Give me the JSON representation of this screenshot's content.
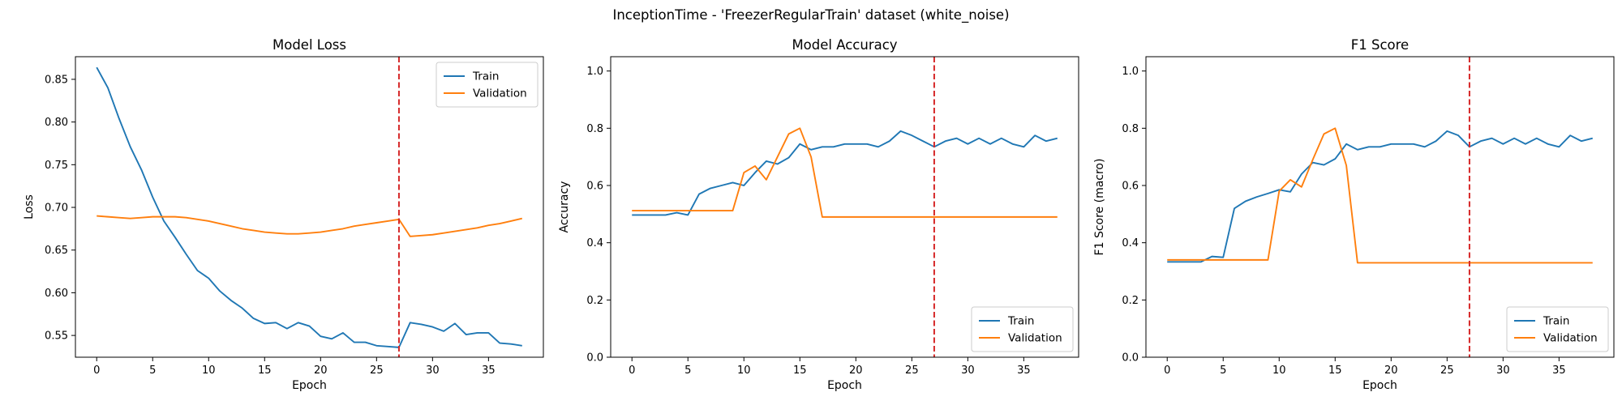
{
  "suptitle": "InceptionTime - 'FreezerRegularTrain' dataset (white_noise)",
  "colors": {
    "train": "#1f77b4",
    "validation": "#ff7f0e",
    "marker": "#d62728"
  },
  "chart_data": [
    {
      "type": "line",
      "title": "Model Loss",
      "xlabel": "Epoch",
      "ylabel": "Loss",
      "xlim": [
        -1.9,
        39.9
      ],
      "ylim": [
        0.5245,
        0.8765
      ],
      "xticks": [
        0,
        5,
        10,
        15,
        20,
        25,
        30,
        35
      ],
      "yticks": [
        0.55,
        0.6,
        0.65,
        0.7,
        0.75,
        0.8,
        0.85
      ],
      "ytick_labels": [
        "0.55",
        "0.60",
        "0.65",
        "0.70",
        "0.75",
        "0.80",
        "0.85"
      ],
      "vline": 27,
      "legend_loc": "upper right",
      "series": [
        {
          "name": "Train",
          "values": [
            0.864,
            0.84,
            0.804,
            0.771,
            0.744,
            0.712,
            0.684,
            0.665,
            0.645,
            0.626,
            0.617,
            0.602,
            0.591,
            0.582,
            0.57,
            0.564,
            0.565,
            0.558,
            0.565,
            0.561,
            0.549,
            0.546,
            0.553,
            0.542,
            0.542,
            0.538,
            0.537,
            0.536,
            0.565,
            0.563,
            0.56,
            0.555,
            0.564,
            0.551,
            0.553,
            0.553,
            0.541,
            0.54,
            0.538
          ]
        },
        {
          "name": "Validation",
          "values": [
            0.69,
            0.689,
            0.688,
            0.687,
            0.688,
            0.689,
            0.689,
            0.689,
            0.688,
            0.686,
            0.684,
            0.681,
            0.678,
            0.675,
            0.673,
            0.671,
            0.67,
            0.669,
            0.669,
            0.67,
            0.671,
            0.673,
            0.675,
            0.678,
            0.68,
            0.682,
            0.684,
            0.686,
            0.666,
            0.667,
            0.668,
            0.67,
            0.672,
            0.674,
            0.676,
            0.679,
            0.681,
            0.684,
            0.687
          ]
        }
      ]
    },
    {
      "type": "line",
      "title": "Model Accuracy",
      "xlabel": "Epoch",
      "ylabel": "Accuracy",
      "xlim": [
        -1.9,
        39.9
      ],
      "ylim": [
        0.0,
        1.05
      ],
      "xticks": [
        0,
        5,
        10,
        15,
        20,
        25,
        30,
        35
      ],
      "yticks": [
        0.0,
        0.2,
        0.4,
        0.6,
        0.8,
        1.0
      ],
      "ytick_labels": [
        "0.0",
        "0.2",
        "0.4",
        "0.6",
        "0.8",
        "1.0"
      ],
      "vline": 27,
      "legend_loc": "lower right",
      "series": [
        {
          "name": "Train",
          "values": [
            0.497,
            0.497,
            0.497,
            0.497,
            0.505,
            0.497,
            0.57,
            0.59,
            0.6,
            0.61,
            0.6,
            0.645,
            0.685,
            0.675,
            0.697,
            0.745,
            0.725,
            0.735,
            0.735,
            0.745,
            0.745,
            0.745,
            0.735,
            0.755,
            0.79,
            0.775,
            0.755,
            0.735,
            0.755,
            0.765,
            0.745,
            0.765,
            0.745,
            0.765,
            0.745,
            0.735,
            0.775,
            0.755,
            0.765
          ]
        },
        {
          "name": "Validation",
          "values": [
            0.512,
            0.512,
            0.512,
            0.512,
            0.512,
            0.512,
            0.512,
            0.512,
            0.512,
            0.512,
            0.645,
            0.668,
            0.62,
            0.7,
            0.78,
            0.8,
            0.7,
            0.49,
            0.49,
            0.49,
            0.49,
            0.49,
            0.49,
            0.49,
            0.49,
            0.49,
            0.49,
            0.49,
            0.49,
            0.49,
            0.49,
            0.49,
            0.49,
            0.49,
            0.49,
            0.49,
            0.49,
            0.49,
            0.49
          ]
        }
      ]
    },
    {
      "type": "line",
      "title": "F1 Score",
      "xlabel": "Epoch",
      "ylabel": "F1 Score (macro)",
      "xlim": [
        -1.9,
        39.9
      ],
      "ylim": [
        0.0,
        1.05
      ],
      "xticks": [
        0,
        5,
        10,
        15,
        20,
        25,
        30,
        35
      ],
      "yticks": [
        0.0,
        0.2,
        0.4,
        0.6,
        0.8,
        1.0
      ],
      "ytick_labels": [
        "0.0",
        "0.2",
        "0.4",
        "0.6",
        "0.8",
        "1.0"
      ],
      "vline": 27,
      "legend_loc": "lower right",
      "series": [
        {
          "name": "Train",
          "values": [
            0.333,
            0.333,
            0.333,
            0.333,
            0.352,
            0.349,
            0.52,
            0.545,
            0.56,
            0.572,
            0.585,
            0.578,
            0.64,
            0.68,
            0.672,
            0.693,
            0.745,
            0.725,
            0.735,
            0.735,
            0.745,
            0.745,
            0.745,
            0.735,
            0.755,
            0.79,
            0.775,
            0.735,
            0.755,
            0.765,
            0.745,
            0.765,
            0.745,
            0.765,
            0.745,
            0.735,
            0.775,
            0.755,
            0.765
          ]
        },
        {
          "name": "Validation",
          "values": [
            0.34,
            0.34,
            0.34,
            0.34,
            0.34,
            0.34,
            0.34,
            0.34,
            0.34,
            0.34,
            0.58,
            0.62,
            0.595,
            0.69,
            0.78,
            0.8,
            0.67,
            0.33,
            0.33,
            0.33,
            0.33,
            0.33,
            0.33,
            0.33,
            0.33,
            0.33,
            0.33,
            0.33,
            0.33,
            0.33,
            0.33,
            0.33,
            0.33,
            0.33,
            0.33,
            0.33,
            0.33,
            0.33,
            0.33
          ]
        }
      ]
    }
  ]
}
